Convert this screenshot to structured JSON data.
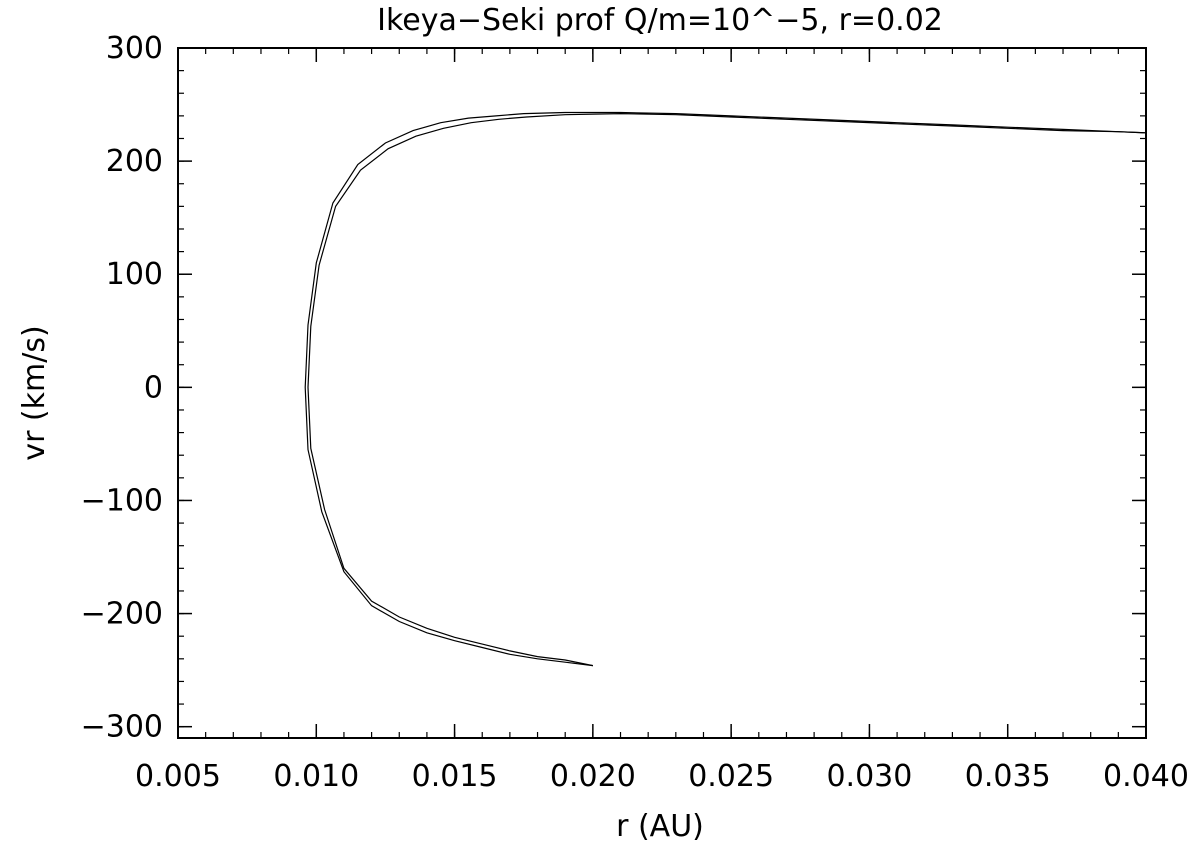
{
  "chart_data": {
    "type": "line",
    "title": "Ikeya−Seki prof Q/m=10^−5, r=0.02",
    "xlabel": "r (AU)",
    "ylabel": "vr (km/s)",
    "xlim": [
      0.005,
      0.04
    ],
    "ylim": [
      -310,
      300
    ],
    "xticks": [
      0.005,
      0.01,
      0.015,
      0.02,
      0.025,
      0.03,
      0.035,
      0.04
    ],
    "xtick_labels": [
      "0.005",
      "0.010",
      "0.015",
      "0.020",
      "0.025",
      "0.030",
      "0.035",
      "0.040"
    ],
    "yticks": [
      -300,
      -200,
      -100,
      0,
      100,
      200,
      300
    ],
    "ytick_labels": [
      "−300",
      "−200",
      "−100",
      "0",
      "100",
      "200",
      "300"
    ],
    "grid": false,
    "series": [
      {
        "x": [
          0.02,
          0.019,
          0.018,
          0.017,
          0.016,
          0.015,
          0.014,
          0.013,
          0.012,
          0.011,
          0.0102,
          0.0097,
          0.0096,
          0.0097,
          0.01,
          0.0106,
          0.0115,
          0.0125,
          0.0135,
          0.0145,
          0.0155,
          0.0165,
          0.0175,
          0.019,
          0.021,
          0.023,
          0.025,
          0.027,
          0.029,
          0.031,
          0.033,
          0.035,
          0.037,
          0.039,
          0.04
        ],
        "y": [
          -246,
          -243,
          -240,
          -236,
          -230,
          -224,
          -217,
          -207,
          -193,
          -163,
          -110,
          -55,
          0,
          55,
          110,
          163,
          197,
          216,
          227,
          234,
          238,
          240,
          242,
          243,
          243,
          242,
          240,
          238,
          236,
          234,
          232,
          230,
          228,
          226,
          225
        ]
      },
      {
        "x": [
          0.02,
          0.019,
          0.018,
          0.017,
          0.016,
          0.015,
          0.014,
          0.013,
          0.012,
          0.011,
          0.0103,
          0.0098,
          0.0097,
          0.0098,
          0.0101,
          0.0107,
          0.0116,
          0.0126,
          0.0136,
          0.0146,
          0.0156,
          0.0166,
          0.0176,
          0.019,
          0.021,
          0.023,
          0.025,
          0.027,
          0.029,
          0.031,
          0.033,
          0.035,
          0.037,
          0.039,
          0.04
        ],
        "y": [
          -246,
          -241,
          -238,
          -233,
          -227,
          -221,
          -213,
          -203,
          -189,
          -160,
          -108,
          -54,
          0,
          54,
          108,
          160,
          192,
          211,
          222,
          229,
          234,
          237,
          239,
          241,
          242,
          241,
          239,
          237,
          235,
          233,
          231,
          229,
          227,
          226,
          225
        ]
      }
    ]
  }
}
